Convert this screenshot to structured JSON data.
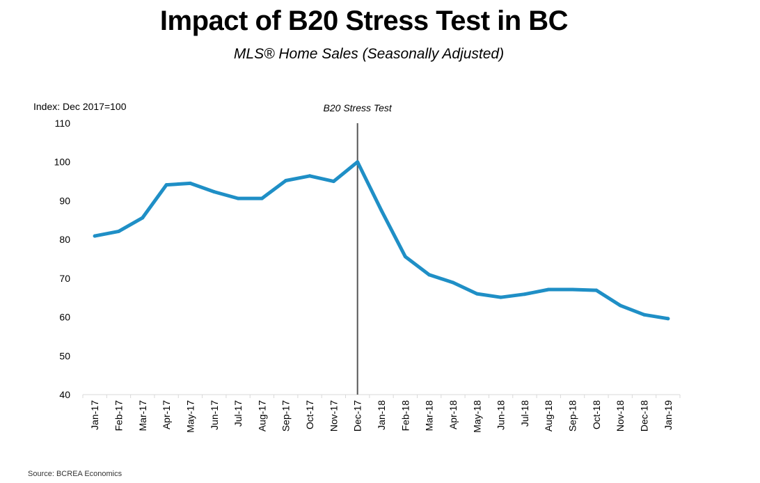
{
  "chart_data": {
    "type": "line",
    "title": "Impact of B20 Stress Test in BC",
    "subtitle": "MLS® Home Sales (Seasonally Adjusted)",
    "ylabel": "Index: Dec 2017=100",
    "source": "Source: BCREA Economics",
    "ylim": [
      40,
      110
    ],
    "yticks": [
      40,
      50,
      60,
      70,
      80,
      90,
      100,
      110
    ],
    "grid": false,
    "categories": [
      "Jan-17",
      "Feb-17",
      "Mar-17",
      "Apr-17",
      "May-17",
      "Jun-17",
      "Jul-17",
      "Aug-17",
      "Sep-17",
      "Oct-17",
      "Nov-17",
      "Dec-17",
      "Jan-18",
      "Feb-18",
      "Mar-18",
      "Apr-18",
      "May-18",
      "Jun-18",
      "Jul-18",
      "Aug-18",
      "Sep-18",
      "Oct-18",
      "Nov-18",
      "Dec-18",
      "Jan-19"
    ],
    "series": [
      {
        "color": "#1f8fc6",
        "values": [
          80.9,
          82.1,
          85.6,
          94.1,
          94.5,
          92.3,
          90.6,
          90.6,
          95.2,
          96.4,
          95.0,
          100.0,
          87.5,
          75.6,
          70.9,
          68.9,
          66.0,
          65.1,
          65.9,
          67.1,
          67.1,
          66.9,
          63.0,
          60.6,
          59.6
        ]
      }
    ],
    "annotation": {
      "label": "B20 Stress Test",
      "at_category": "Dec-17"
    }
  }
}
